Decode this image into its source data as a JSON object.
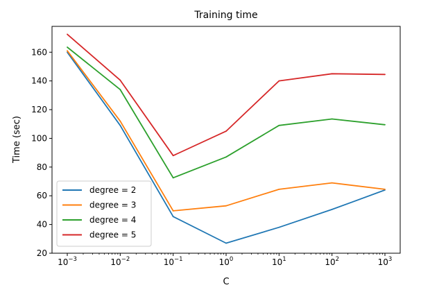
{
  "chart_data": {
    "type": "line",
    "title": "Training time",
    "xlabel": "C",
    "ylabel": "Time (sec)",
    "xscale": "log",
    "x": [
      0.001,
      0.01,
      0.1,
      1,
      10,
      100,
      1000
    ],
    "xtick_labels": [
      {
        "base": "10",
        "exp": "−3"
      },
      {
        "base": "10",
        "exp": "−2"
      },
      {
        "base": "10",
        "exp": "−1"
      },
      {
        "base": "10",
        "exp": "0"
      },
      {
        "base": "10",
        "exp": "1"
      },
      {
        "base": "10",
        "exp": "2"
      },
      {
        "base": "10",
        "exp": "3"
      }
    ],
    "ylim": [
      20,
      178
    ],
    "yticks": [
      20,
      40,
      60,
      80,
      100,
      120,
      140,
      160
    ],
    "grid": false,
    "legend_position": "lower-left",
    "series": [
      {
        "name": "degree = 2",
        "color": "#1f77b4",
        "values": [
          160,
          109,
          45.5,
          27,
          38,
          50.5,
          64
        ]
      },
      {
        "name": "degree = 3",
        "color": "#ff7f0e",
        "values": [
          161,
          112,
          49.5,
          53,
          64.5,
          69,
          64.5
        ]
      },
      {
        "name": "degree = 4",
        "color": "#2ca02c",
        "values": [
          163.5,
          134,
          72.5,
          87,
          109,
          113.5,
          109.5
        ]
      },
      {
        "name": "degree = 5",
        "color": "#d62728",
        "values": [
          172.5,
          140.5,
          88,
          105,
          140,
          145,
          144.5
        ]
      }
    ]
  }
}
